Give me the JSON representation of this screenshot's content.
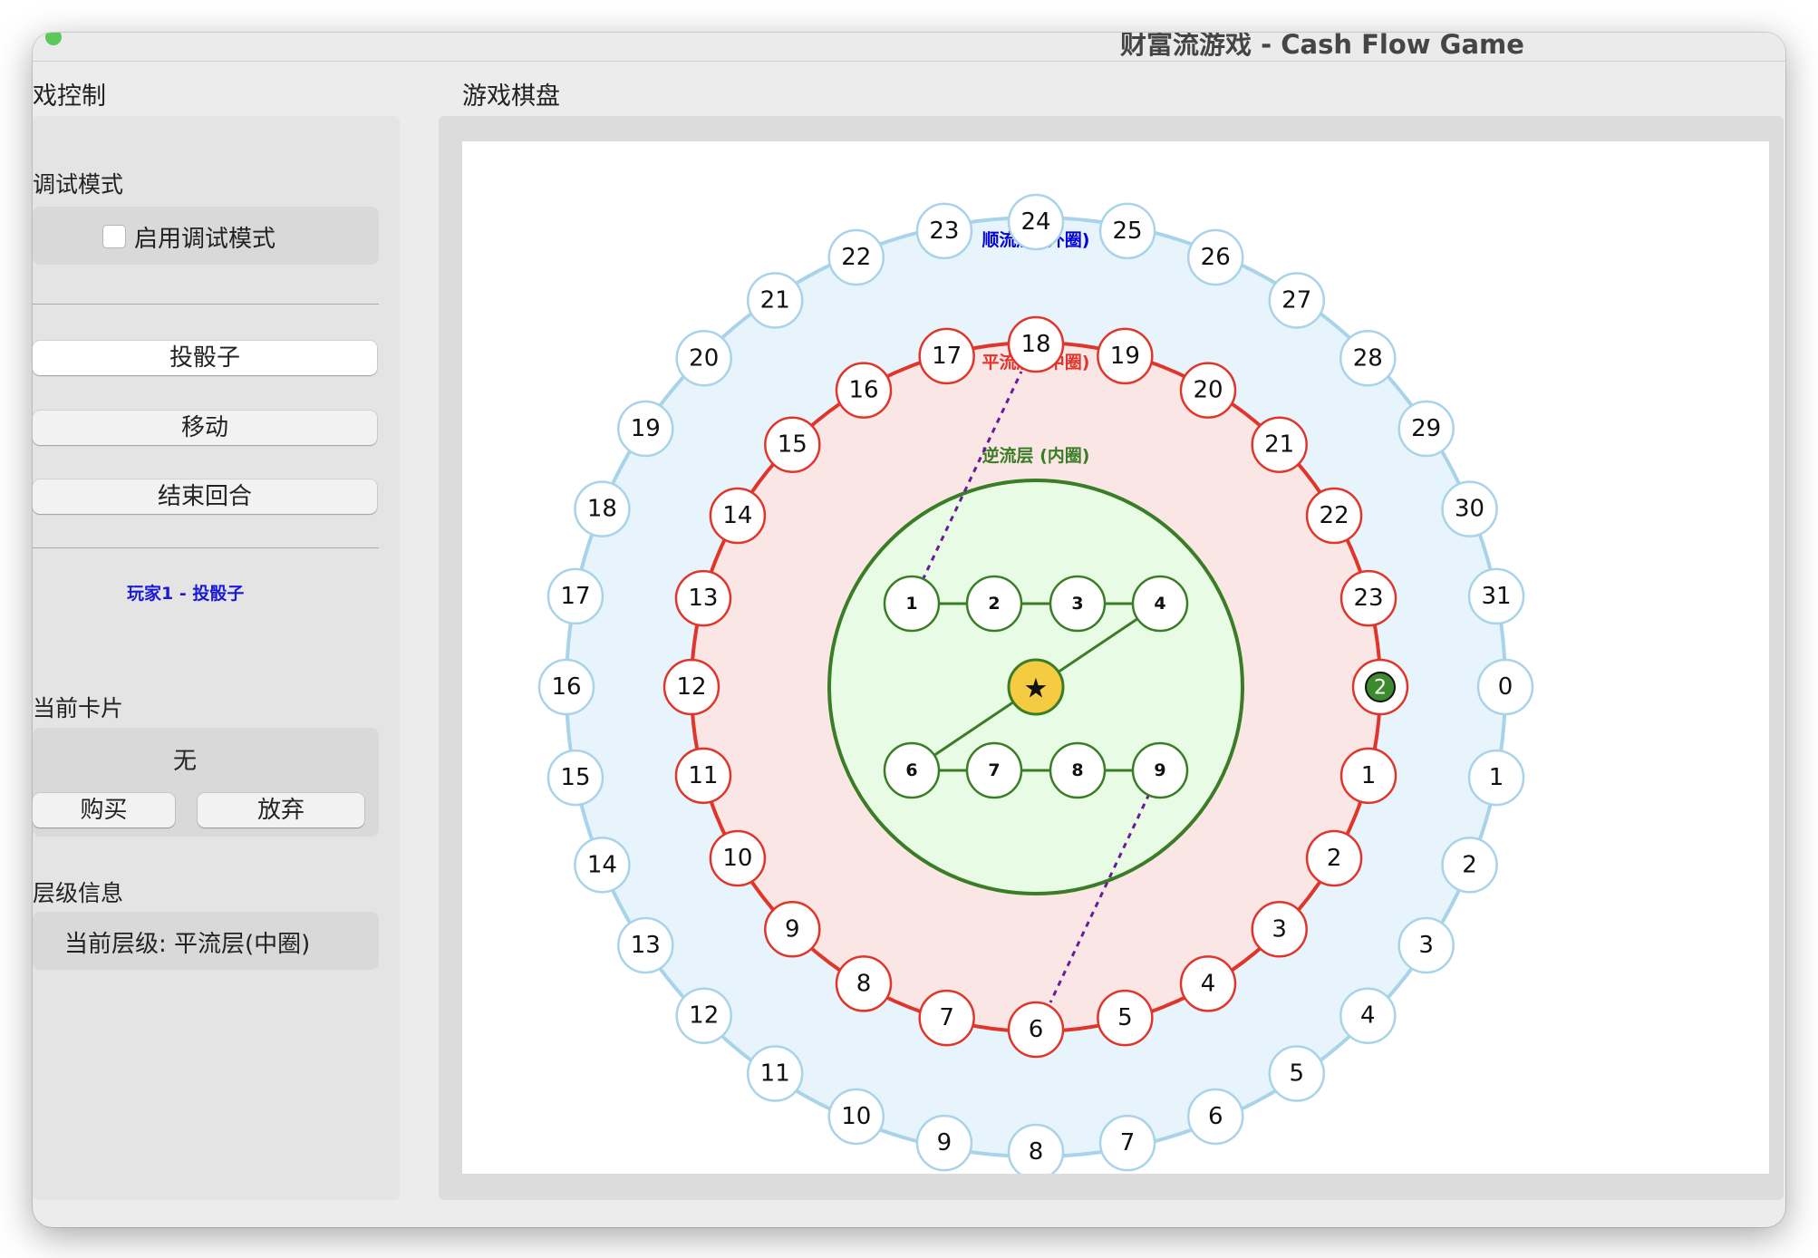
{
  "window": {
    "title": "财富流游戏 - Cash Flow Game"
  },
  "control_panel": {
    "title": "戏控制",
    "debug_section": {
      "title": "调试模式",
      "checkbox_label": "启用调试模式",
      "checked": false
    },
    "buttons": {
      "roll": "投骰子",
      "move": "移动",
      "end_turn": "结束回合"
    },
    "status_text": "玩家1 - 投骰子",
    "card_section": {
      "title": "当前卡片",
      "card_value": "无",
      "buy": "购买",
      "discard": "放弃"
    },
    "level_section": {
      "title": "层级信息",
      "current_level": "当前层级: 平流层(中圈)"
    }
  },
  "board_panel": {
    "title": "游戏棋盘"
  },
  "board": {
    "outer_ring": {
      "label": "顺流层 (外圈)",
      "numbers": [
        "0",
        "1",
        "2",
        "3",
        "4",
        "5",
        "6",
        "7",
        "8",
        "9",
        "10",
        "11",
        "12",
        "13",
        "14",
        "15",
        "16",
        "17",
        "18",
        "19",
        "20",
        "21",
        "22",
        "23",
        "24",
        "25",
        "26",
        "27",
        "28",
        "29",
        "30",
        "31"
      ]
    },
    "middle_ring": {
      "label": "平流层 (中圈)",
      "numbers": [
        "1",
        "2",
        "3",
        "4",
        "5",
        "6",
        "7",
        "8",
        "9",
        "10",
        "11",
        "12",
        "13",
        "14",
        "15",
        "16",
        "17",
        "18",
        "19",
        "20",
        "21",
        "22",
        "23"
      ]
    },
    "inner_circle": {
      "label": "逆流层 (内圈)",
      "top_row": [
        "1",
        "2",
        "3",
        "4"
      ],
      "bottom_row": [
        "6",
        "7",
        "8",
        "9"
      ],
      "center_symbol": "★"
    },
    "player_token": "2",
    "colors": {
      "outer_fill": "#e8f4fc",
      "outer_stroke": "#a8d3e8",
      "outer_label": "#0000dd",
      "middle_fill": "#fbe6e6",
      "middle_stroke": "#e0352b",
      "middle_label": "#e0352b",
      "inner_fill": "#e8fbe4",
      "inner_stroke": "#3a7d26",
      "inner_label": "#3a7d26",
      "center_fill": "#f5cb42",
      "token_fill": "#3d8a2e",
      "shortcut": "#6a1b9a"
    }
  }
}
